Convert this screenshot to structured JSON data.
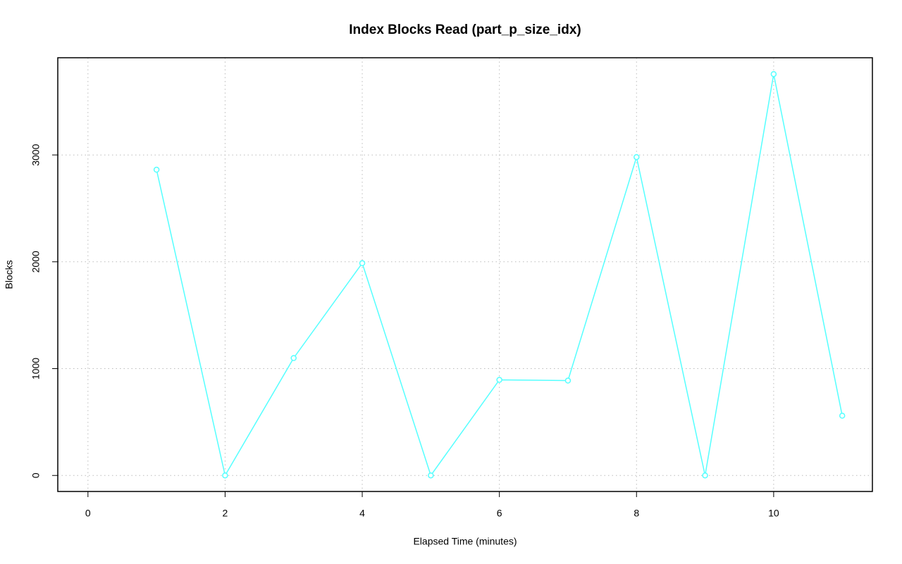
{
  "chart_data": {
    "type": "line",
    "title": "Index Blocks Read (part_p_size_idx)",
    "x_label": "Elapsed Time (minutes)",
    "y_label": "Blocks",
    "x": [
      1,
      2,
      3,
      4,
      5,
      6,
      7,
      8,
      9,
      10,
      11
    ],
    "series": [
      {
        "name": "Blocks",
        "color": "#55ffff",
        "values": [
          2862,
          0,
          1099,
          1987,
          0,
          895,
          888,
          2980,
          0,
          3757,
          559
        ]
      }
    ],
    "xlim": [
      -0.44,
      11.44
    ],
    "xticks": [
      0,
      2,
      4,
      6,
      8,
      10
    ],
    "ylim": [
      -150,
      3910
    ],
    "yticks": [
      0,
      1000,
      2000,
      3000
    ],
    "grid": true
  }
}
